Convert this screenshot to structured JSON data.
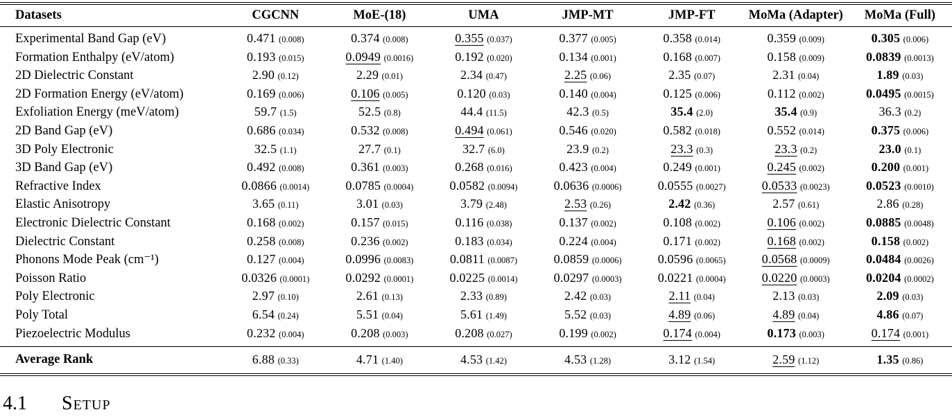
{
  "section": {
    "number": "4.1",
    "title": "Setup"
  },
  "table": {
    "columns": [
      "Datasets",
      "CGCNN",
      "MoE-(18)",
      "UMA",
      "JMP-MT",
      "JMP-FT",
      "MoMa (Adapter)",
      "MoMa (Full)"
    ],
    "style_legend": {
      "b": "best (bold)",
      "u": "second-best (underlined)"
    },
    "rows": [
      {
        "label": "Experimental Band Gap (eV)",
        "cells": [
          [
            "0.471",
            "0.008",
            ""
          ],
          [
            "0.374",
            "0.008",
            ""
          ],
          [
            "0.355",
            "0.037",
            "u"
          ],
          [
            "0.377",
            "0.005",
            ""
          ],
          [
            "0.358",
            "0.014",
            ""
          ],
          [
            "0.359",
            "0.009",
            ""
          ],
          [
            "0.305",
            "0.006",
            "b"
          ]
        ]
      },
      {
        "label": "Formation Enthalpy (eV/atom)",
        "cells": [
          [
            "0.193",
            "0.015",
            ""
          ],
          [
            "0.0949",
            "0.0016",
            "u"
          ],
          [
            "0.192",
            "0.020",
            ""
          ],
          [
            "0.134",
            "0.001",
            ""
          ],
          [
            "0.168",
            "0.007",
            ""
          ],
          [
            "0.158",
            "0.009",
            ""
          ],
          [
            "0.0839",
            "0.0013",
            "b"
          ]
        ]
      },
      {
        "label": "2D Dielectric Constant",
        "cells": [
          [
            "2.90",
            "0.12",
            ""
          ],
          [
            "2.29",
            "0.01",
            ""
          ],
          [
            "2.34",
            "0.47",
            ""
          ],
          [
            "2.25",
            "0.06",
            "u"
          ],
          [
            "2.35",
            "0.07",
            ""
          ],
          [
            "2.31",
            "0.04",
            ""
          ],
          [
            "1.89",
            "0.03",
            "b"
          ]
        ]
      },
      {
        "label": "2D Formation Energy (eV/atom)",
        "cells": [
          [
            "0.169",
            "0.006",
            ""
          ],
          [
            "0.106",
            "0.005",
            "u"
          ],
          [
            "0.120",
            "0.03",
            ""
          ],
          [
            "0.140",
            "0.004",
            ""
          ],
          [
            "0.125",
            "0.006",
            ""
          ],
          [
            "0.112",
            "0.002",
            ""
          ],
          [
            "0.0495",
            "0.0015",
            "b"
          ]
        ]
      },
      {
        "label": "Exfoliation Energy (meV/atom)",
        "cells": [
          [
            "59.7",
            "1.5",
            ""
          ],
          [
            "52.5",
            "0.8",
            ""
          ],
          [
            "44.4",
            "11.5",
            ""
          ],
          [
            "42.3",
            "0.5",
            ""
          ],
          [
            "35.4",
            "2.0",
            "b"
          ],
          [
            "35.4",
            "0.9",
            "b"
          ],
          [
            "36.3",
            "0.2",
            ""
          ]
        ]
      },
      {
        "label": "2D Band Gap (eV)",
        "cells": [
          [
            "0.686",
            "0.034",
            ""
          ],
          [
            "0.532",
            "0.008",
            ""
          ],
          [
            "0.494",
            "0.061",
            "u"
          ],
          [
            "0.546",
            "0.020",
            ""
          ],
          [
            "0.582",
            "0.018",
            ""
          ],
          [
            "0.552",
            "0.014",
            ""
          ],
          [
            "0.375",
            "0.006",
            "b"
          ]
        ]
      },
      {
        "label": "3D Poly Electronic",
        "cells": [
          [
            "32.5",
            "1.1",
            ""
          ],
          [
            "27.7",
            "0.1",
            ""
          ],
          [
            "32.7",
            "6.0",
            ""
          ],
          [
            "23.9",
            "0.2",
            ""
          ],
          [
            "23.3",
            "0.3",
            "u"
          ],
          [
            "23.3",
            "0.2",
            "u"
          ],
          [
            "23.0",
            "0.1",
            "b"
          ]
        ]
      },
      {
        "label": "3D Band Gap (eV)",
        "cells": [
          [
            "0.492",
            "0.008",
            ""
          ],
          [
            "0.361",
            "0.003",
            ""
          ],
          [
            "0.268",
            "0.016",
            ""
          ],
          [
            "0.423",
            "0.004",
            ""
          ],
          [
            "0.249",
            "0.001",
            ""
          ],
          [
            "0.245",
            "0.002",
            "u"
          ],
          [
            "0.200",
            "0.001",
            "b"
          ]
        ]
      },
      {
        "label": "Refractive Index",
        "cells": [
          [
            "0.0866",
            "0.0014",
            ""
          ],
          [
            "0.0785",
            "0.0004",
            ""
          ],
          [
            "0.0582",
            "0.0094",
            ""
          ],
          [
            "0.0636",
            "0.0006",
            ""
          ],
          [
            "0.0555",
            "0.0027",
            ""
          ],
          [
            "0.0533",
            "0.0023",
            "u"
          ],
          [
            "0.0523",
            "0.0010",
            "b"
          ]
        ]
      },
      {
        "label": "Elastic Anisotropy",
        "cells": [
          [
            "3.65",
            "0.11",
            ""
          ],
          [
            "3.01",
            "0.03",
            ""
          ],
          [
            "3.79",
            "2.48",
            ""
          ],
          [
            "2.53",
            "0.26",
            "u"
          ],
          [
            "2.42",
            "0.36",
            "b"
          ],
          [
            "2.57",
            "0.61",
            ""
          ],
          [
            "2.86",
            "0.28",
            ""
          ]
        ]
      },
      {
        "label": "Electronic Dielectric Constant",
        "cells": [
          [
            "0.168",
            "0.002",
            ""
          ],
          [
            "0.157",
            "0.015",
            ""
          ],
          [
            "0.116",
            "0.038",
            ""
          ],
          [
            "0.137",
            "0.002",
            ""
          ],
          [
            "0.108",
            "0.002",
            ""
          ],
          [
            "0.106",
            "0.002",
            "u"
          ],
          [
            "0.0885",
            "0.0048",
            "b"
          ]
        ]
      },
      {
        "label": "Dielectric Constant",
        "cells": [
          [
            "0.258",
            "0.008",
            ""
          ],
          [
            "0.236",
            "0.002",
            ""
          ],
          [
            "0.183",
            "0.034",
            ""
          ],
          [
            "0.224",
            "0.004",
            ""
          ],
          [
            "0.171",
            "0.002",
            ""
          ],
          [
            "0.168",
            "0.002",
            "u"
          ],
          [
            "0.158",
            "0.002",
            "b"
          ]
        ]
      },
      {
        "label": "Phonons Mode Peak (cm⁻¹)",
        "cells": [
          [
            "0.127",
            "0.004",
            ""
          ],
          [
            "0.0996",
            "0.0083",
            ""
          ],
          [
            "0.0811",
            "0.0087",
            ""
          ],
          [
            "0.0859",
            "0.0006",
            ""
          ],
          [
            "0.0596",
            "0.0065",
            ""
          ],
          [
            "0.0568",
            "0.0009",
            "u"
          ],
          [
            "0.0484",
            "0.0026",
            "b"
          ]
        ]
      },
      {
        "label": "Poisson Ratio",
        "cells": [
          [
            "0.0326",
            "0.0001",
            ""
          ],
          [
            "0.0292",
            "0.0001",
            ""
          ],
          [
            "0.0225",
            "0.0014",
            ""
          ],
          [
            "0.0297",
            "0.0003",
            ""
          ],
          [
            "0.0221",
            "0.0004",
            ""
          ],
          [
            "0.0220",
            "0.0003",
            "u"
          ],
          [
            "0.0204",
            "0.0002",
            "b"
          ]
        ]
      },
      {
        "label": "Poly Electronic",
        "cells": [
          [
            "2.97",
            "0.10",
            ""
          ],
          [
            "2.61",
            "0.13",
            ""
          ],
          [
            "2.33",
            "0.89",
            ""
          ],
          [
            "2.42",
            "0.03",
            ""
          ],
          [
            "2.11",
            "0.04",
            "u"
          ],
          [
            "2.13",
            "0.03",
            ""
          ],
          [
            "2.09",
            "0.03",
            "b"
          ]
        ]
      },
      {
        "label": "Poly Total",
        "cells": [
          [
            "6.54",
            "0.24",
            ""
          ],
          [
            "5.51",
            "0.04",
            ""
          ],
          [
            "5.61",
            "1.49",
            ""
          ],
          [
            "5.52",
            "0.03",
            ""
          ],
          [
            "4.89",
            "0.06",
            "u"
          ],
          [
            "4.89",
            "0.04",
            "u"
          ],
          [
            "4.86",
            "0.07",
            "b"
          ]
        ]
      },
      {
        "label": "Piezoelectric Modulus",
        "cells": [
          [
            "0.232",
            "0.004",
            ""
          ],
          [
            "0.208",
            "0.003",
            ""
          ],
          [
            "0.208",
            "0.027",
            ""
          ],
          [
            "0.199",
            "0.002",
            ""
          ],
          [
            "0.174",
            "0.004",
            "u"
          ],
          [
            "0.173",
            "0.003",
            "b"
          ],
          [
            "0.174",
            "0.001",
            "u"
          ]
        ]
      }
    ],
    "footer": {
      "label": "Average Rank",
      "cells": [
        [
          "6.88",
          "0.33",
          ""
        ],
        [
          "4.71",
          "1.40",
          ""
        ],
        [
          "4.53",
          "1.42",
          ""
        ],
        [
          "4.53",
          "1.28",
          ""
        ],
        [
          "3.12",
          "1.54",
          ""
        ],
        [
          "2.59",
          "1.12",
          "u"
        ],
        [
          "1.35",
          "0.86",
          "b"
        ]
      ]
    }
  }
}
